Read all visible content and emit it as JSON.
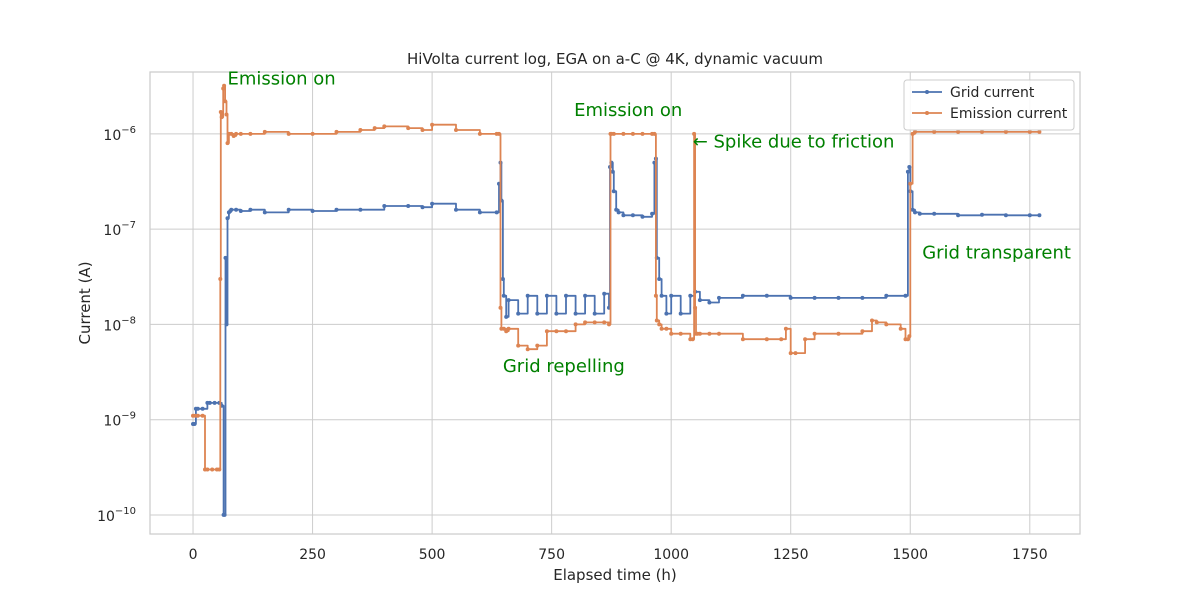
{
  "chart_data": {
    "type": "line",
    "title": "HiVolta current log, EGA on a-C @ 4K, dynamic vacuum",
    "xlabel": "Elapsed time (h)",
    "ylabel": "Current (A)",
    "xlim": [
      -90,
      1855
    ],
    "ylim_log10": [
      -10.2,
      6.0
    ],
    "yscale": "log",
    "grid": true,
    "legend_position": "top-right",
    "x_ticks": [
      {
        "value": 0,
        "label": "0"
      },
      {
        "value": 250,
        "label": "250"
      },
      {
        "value": 500,
        "label": "500"
      },
      {
        "value": 750,
        "label": "750"
      },
      {
        "value": 1000,
        "label": "1000"
      },
      {
        "value": 1250,
        "label": "1250"
      },
      {
        "value": 1500,
        "label": "1500"
      },
      {
        "value": 1750,
        "label": "1750"
      }
    ],
    "y_ticks": [
      {
        "exp": -10,
        "base": "10",
        "sup": "−10"
      },
      {
        "exp": -9,
        "base": "10",
        "sup": "−9"
      },
      {
        "exp": -8,
        "base": "10",
        "sup": "−8"
      },
      {
        "exp": -7,
        "base": "10",
        "sup": "−7"
      },
      {
        "exp": -6,
        "base": "10",
        "sup": "−6"
      }
    ],
    "series": [
      {
        "name": "Grid current",
        "color": "#4c72b0",
        "x": [
          0,
          3,
          6,
          10,
          20,
          30,
          35,
          45,
          55,
          60,
          64,
          66,
          68,
          70,
          72,
          75,
          78,
          80,
          90,
          100,
          120,
          150,
          200,
          250,
          300,
          350,
          400,
          450,
          480,
          500,
          550,
          600,
          635,
          640,
          643,
          645,
          648,
          650,
          655,
          660,
          680,
          700,
          720,
          740,
          760,
          780,
          800,
          820,
          840,
          860,
          870,
          872,
          875,
          878,
          880,
          885,
          890,
          900,
          920,
          940,
          960,
          965,
          968,
          970,
          975,
          980,
          990,
          1000,
          1020,
          1040,
          1050,
          1060,
          1080,
          1100,
          1150,
          1200,
          1250,
          1300,
          1350,
          1400,
          1450,
          1490,
          1495,
          1498,
          1500,
          1505,
          1510,
          1520,
          1550,
          1600,
          1650,
          1700,
          1750,
          1770
        ],
        "y": [
          9e-10,
          9e-10,
          1.3e-09,
          1.3e-09,
          1.3e-09,
          1.5e-09,
          1.5e-09,
          1.5e-09,
          1.5e-09,
          1.4e-09,
          1e-10,
          1e-10,
          5e-08,
          1e-08,
          1.3e-07,
          1.5e-07,
          1.55e-07,
          1.6e-07,
          1.6e-07,
          1.55e-07,
          1.6e-07,
          1.5e-07,
          1.6e-07,
          1.55e-07,
          1.6e-07,
          1.6e-07,
          1.75e-07,
          1.75e-07,
          1.7e-07,
          1.85e-07,
          1.6e-07,
          1.5e-07,
          1.5e-07,
          3e-07,
          5e-07,
          2e-07,
          3e-08,
          2e-08,
          1.2e-08,
          1.8e-08,
          1.3e-08,
          2e-08,
          1.3e-08,
          2e-08,
          1.3e-08,
          2e-08,
          1.3e-08,
          2e-08,
          1.3e-08,
          2.1e-08,
          1.5e-08,
          4.5e-07,
          5e-07,
          4e-07,
          2.5e-07,
          1.6e-07,
          1.5e-07,
          1.4e-07,
          1.4e-07,
          1.35e-07,
          1.45e-07,
          5e-07,
          5.5e-07,
          5e-08,
          3e-08,
          2e-08,
          1.3e-08,
          2e-08,
          1.3e-08,
          2e-08,
          2.2e-08,
          1.8e-08,
          1.7e-08,
          1.9e-08,
          2e-08,
          2e-08,
          1.9e-08,
          1.9e-08,
          1.9e-08,
          1.9e-08,
          2e-08,
          2e-08,
          4e-07,
          4.5e-07,
          2.5e-07,
          1.6e-07,
          1.5e-07,
          1.45e-07,
          1.45e-07,
          1.4e-07,
          1.42e-07,
          1.4e-07,
          1.4e-07,
          1.4e-07
        ]
      },
      {
        "name": "Emission current",
        "color": "#dd8452",
        "x": [
          0,
          5,
          10,
          20,
          25,
          30,
          40,
          50,
          55,
          57,
          58,
          60,
          63,
          65,
          67,
          70,
          72,
          75,
          80,
          85,
          90,
          100,
          120,
          150,
          200,
          250,
          300,
          350,
          380,
          400,
          450,
          480,
          500,
          550,
          600,
          635,
          640,
          643,
          645,
          650,
          655,
          660,
          680,
          700,
          720,
          740,
          760,
          780,
          800,
          820,
          840,
          860,
          870,
          873,
          875,
          880,
          900,
          920,
          940,
          960,
          965,
          968,
          970,
          975,
          980,
          990,
          1000,
          1020,
          1040,
          1045,
          1048,
          1050,
          1052,
          1055,
          1060,
          1080,
          1100,
          1150,
          1200,
          1230,
          1240,
          1250,
          1260,
          1280,
          1300,
          1350,
          1400,
          1420,
          1430,
          1450,
          1480,
          1490,
          1495,
          1498,
          1500,
          1505,
          1510,
          1550,
          1600,
          1650,
          1700,
          1750,
          1770
        ],
        "y": [
          1.1e-09,
          1.1e-09,
          1.1e-09,
          1.1e-09,
          3e-10,
          3e-10,
          3e-10,
          3e-10,
          3e-10,
          3e-08,
          1.7e-06,
          1.5e-06,
          3e-06,
          3.2e-06,
          2.2e-06,
          1.6e-06,
          8e-07,
          1e-06,
          1e-06,
          9.5e-07,
          1e-06,
          1e-06,
          1e-06,
          1.05e-06,
          1e-06,
          1e-06,
          1.05e-06,
          1.1e-06,
          1.15e-06,
          1.2e-06,
          1.15e-06,
          1.1e-06,
          1.25e-06,
          1.1e-06,
          1e-06,
          1e-06,
          1e-06,
          1.5e-08,
          9e-09,
          9e-09,
          8.5e-09,
          9e-09,
          6e-09,
          5.5e-09,
          6e-09,
          8.5e-09,
          8.5e-09,
          8.5e-09,
          1e-08,
          1.05e-08,
          1.05e-08,
          1.05e-08,
          1e-08,
          1e-06,
          1e-06,
          1e-06,
          1e-06,
          1e-06,
          1e-06,
          1e-06,
          1e-06,
          2e-08,
          1.1e-08,
          1e-08,
          9e-09,
          9e-09,
          8e-09,
          8e-09,
          7e-09,
          7e-09,
          1e-06,
          1.5e-08,
          8e-09,
          8e-09,
          8e-09,
          8e-09,
          8e-09,
          7e-09,
          7e-09,
          7e-09,
          9e-09,
          5e-09,
          5e-09,
          7e-09,
          8e-09,
          8e-09,
          8.5e-09,
          1.1e-08,
          1.05e-08,
          1e-08,
          9e-09,
          7e-09,
          7e-09,
          7.5e-09,
          3e-07,
          1e-06,
          1.05e-06,
          1.05e-06,
          1.05e-06,
          1.05e-06,
          1.05e-06,
          1.05e-06,
          1.05e-06
        ]
      }
    ],
    "annotations": [
      {
        "text": "Emission on",
        "x": 72,
        "log10y": -5.48,
        "color": "#008000"
      },
      {
        "text": "Emission on",
        "x": 797,
        "log10y": -5.81,
        "color": "#008000"
      },
      {
        "text": "← Spike due to friction",
        "x": 1045,
        "log10y": -6.14,
        "color": "#008000"
      },
      {
        "text": "Grid transparent",
        "x": 1525,
        "log10y": -7.31,
        "color": "#008000"
      },
      {
        "text": "Grid repelling",
        "x": 648,
        "log10y": -8.5,
        "color": "#008000"
      }
    ]
  }
}
